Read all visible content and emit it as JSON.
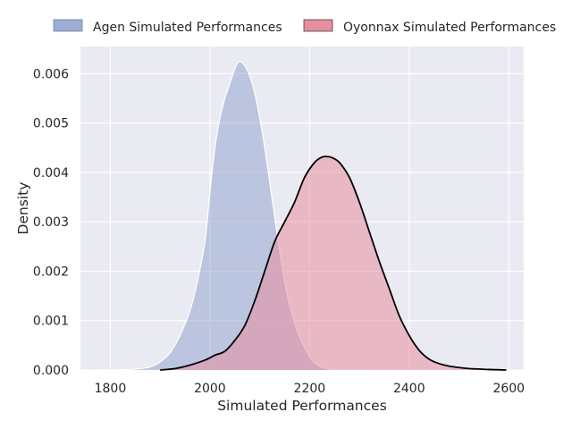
{
  "chart_data": {
    "type": "area",
    "title": "",
    "xlabel": "Simulated Performances",
    "ylabel": "Density",
    "xlim": [
      1740,
      2630
    ],
    "ylim": [
      0,
      0.00655
    ],
    "grid": true,
    "legend_position": "top",
    "x_ticks": [
      "1800",
      "2000",
      "2200",
      "2400",
      "2600"
    ],
    "y_ticks": [
      "0.000",
      "0.001",
      "0.002",
      "0.003",
      "0.004",
      "0.005",
      "0.006"
    ],
    "series": [
      {
        "name": "Agen Simulated Performances",
        "fill": "#8da0cb",
        "fill_opacity": 0.5,
        "stroke": "#ffffff",
        "x": [
          1785,
          1820,
          1850,
          1870,
          1885,
          1900,
          1920,
          1940,
          1960,
          1975,
          1990,
          2000,
          2010,
          2020,
          2030,
          2040,
          2050,
          2058,
          2065,
          2072,
          2080,
          2090,
          2100,
          2110,
          2120,
          2130,
          2140,
          2150,
          2160,
          2175,
          2190,
          2205,
          2220,
          2240,
          2260,
          2280,
          2300
        ],
        "y": [
          0,
          5e-06,
          2e-05,
          4e-05,
          8e-05,
          0.00016,
          0.00035,
          0.0007,
          0.0012,
          0.0018,
          0.0026,
          0.0036,
          0.0045,
          0.0051,
          0.0055,
          0.0058,
          0.0061,
          0.00624,
          0.00622,
          0.00613,
          0.00595,
          0.0056,
          0.0051,
          0.0045,
          0.0038,
          0.0031,
          0.0024,
          0.0018,
          0.0013,
          0.0008,
          0.00045,
          0.0002,
          8e-05,
          2e-05,
          5e-06,
          1e-06,
          0
        ]
      },
      {
        "name": "Oyonnax Simulated Performances",
        "fill": "#e78ea0",
        "fill_opacity": 0.55,
        "stroke": "#000000",
        "x": [
          1900,
          1930,
          1960,
          1990,
          2010,
          2030,
          2050,
          2070,
          2090,
          2110,
          2130,
          2150,
          2170,
          2190,
          2210,
          2225,
          2235,
          2245,
          2260,
          2280,
          2300,
          2320,
          2340,
          2360,
          2380,
          2400,
          2420,
          2440,
          2460,
          2480,
          2500,
          2520,
          2540,
          2560,
          2580,
          2595
        ],
        "y": [
          0,
          3e-05,
          0.0001,
          0.0002,
          0.0003,
          0.00038,
          0.0006,
          0.0009,
          0.0014,
          0.002,
          0.0026,
          0.003,
          0.0034,
          0.0039,
          0.0042,
          0.00431,
          0.00432,
          0.0043,
          0.0042,
          0.0039,
          0.0034,
          0.0028,
          0.0022,
          0.00165,
          0.0011,
          0.0007,
          0.0004,
          0.00022,
          0.00013,
          8e-05,
          5e-05,
          3e-05,
          2e-05,
          1e-05,
          4e-06,
          0
        ]
      }
    ]
  }
}
